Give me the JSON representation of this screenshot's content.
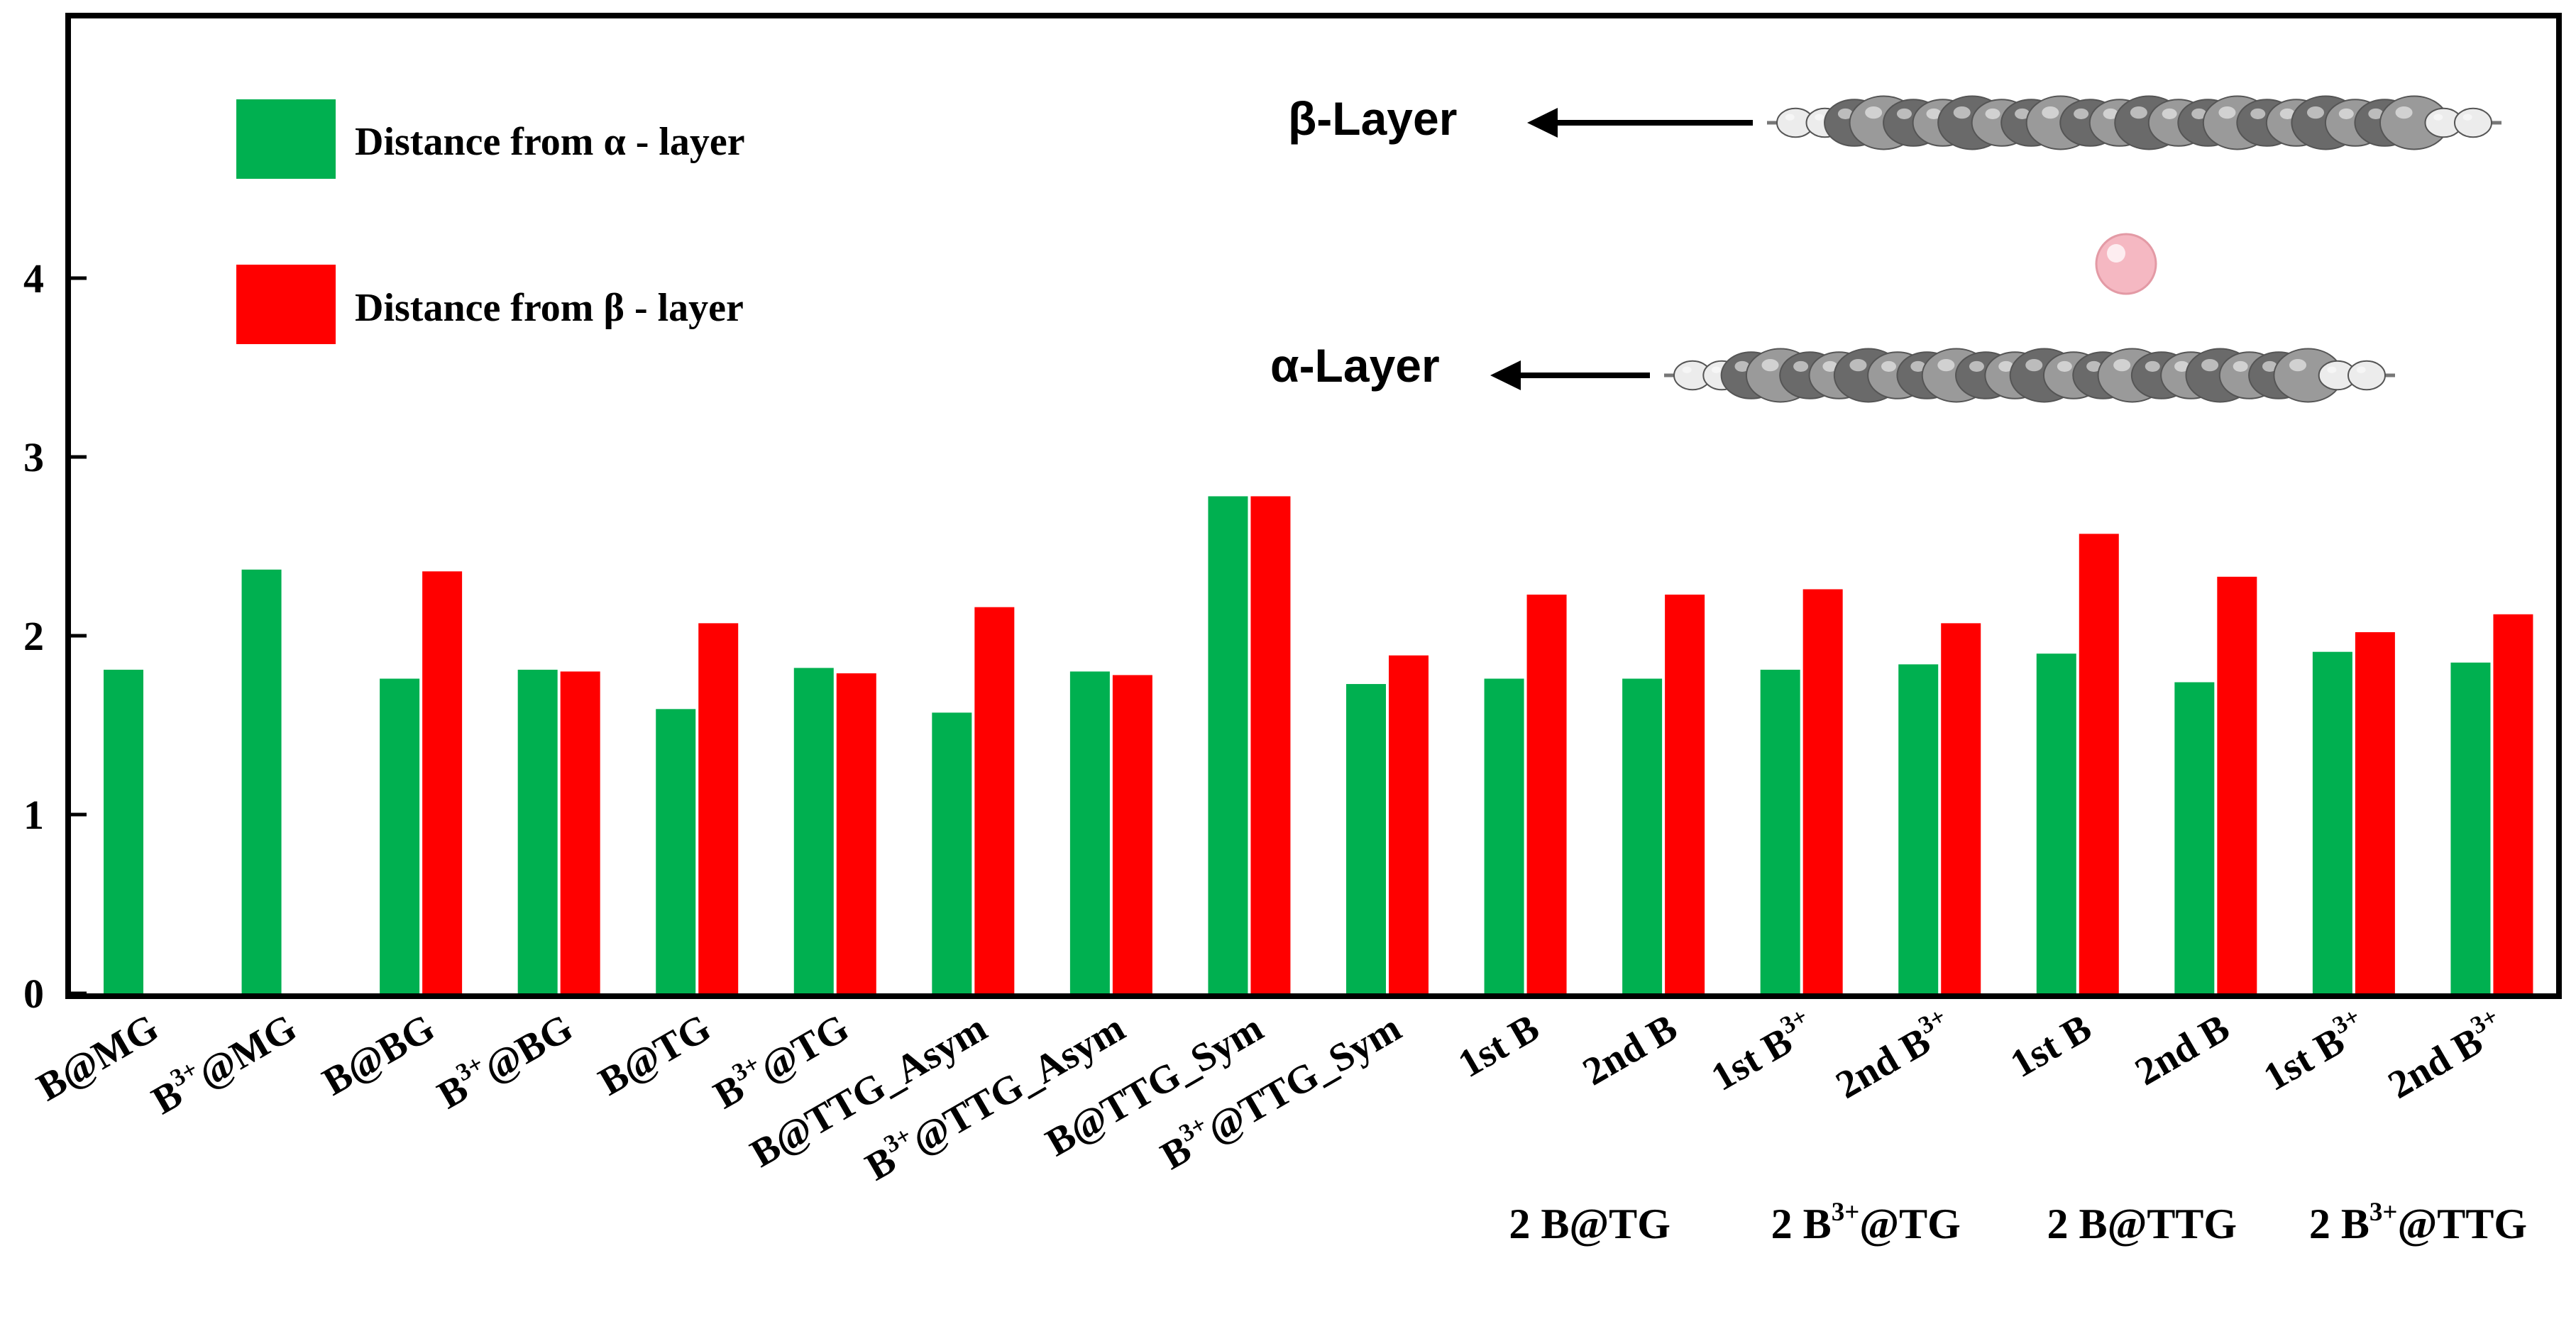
{
  "chart_data": {
    "type": "bar",
    "title": "",
    "xlabel": "",
    "ylabel": "",
    "ylim": [
      0,
      5
    ],
    "yticks": [
      "0",
      "1",
      "2",
      "3",
      "4"
    ],
    "grid": false,
    "legend_position": "top-left",
    "categories": [
      {
        "main": "B@MG"
      },
      {
        "main": "B",
        "sup": "3+",
        "rest": "@MG"
      },
      {
        "main": "B@BG"
      },
      {
        "main": "B",
        "sup": "3+",
        "rest": "@BG"
      },
      {
        "main": "B@TG"
      },
      {
        "main": "B",
        "sup": "3+",
        "rest": "@TG"
      },
      {
        "main": "B@TTG_Asym"
      },
      {
        "main": "B",
        "sup": "3+",
        "rest": "@TTG_Asym"
      },
      {
        "main": "B@TTG_Sym"
      },
      {
        "main": "B",
        "sup": "3+",
        "rest": "@TTG_Sym"
      },
      {
        "main": "1st B"
      },
      {
        "main": "2nd B"
      },
      {
        "main": "1st  B",
        "sup": "3+"
      },
      {
        "main": "2nd B",
        "sup": "3+"
      },
      {
        "main": "1st B"
      },
      {
        "main": "2nd B"
      },
      {
        "main": "1st B",
        "sup": "3+"
      },
      {
        "main": "2nd B",
        "sup": "3+"
      }
    ],
    "series": [
      {
        "name": "Distance from α - layer",
        "color": "#00b050",
        "values": [
          1.81,
          2.37,
          1.76,
          1.81,
          1.59,
          1.82,
          1.57,
          1.8,
          2.78,
          1.73,
          1.76,
          1.76,
          1.81,
          1.84,
          1.9,
          1.74,
          1.91,
          1.85
        ]
      },
      {
        "name": "Distance from β - layer",
        "color": "#ff0000",
        "values": [
          null,
          null,
          2.36,
          1.8,
          2.07,
          1.79,
          2.16,
          1.78,
          2.78,
          1.89,
          2.23,
          2.23,
          2.26,
          2.07,
          2.57,
          2.33,
          2.02,
          2.12
        ]
      }
    ],
    "groups": [
      {
        "main": "2 B@TG",
        "sup": "",
        "rest": "",
        "first": 10,
        "last": 11
      },
      {
        "main": "2 B",
        "sup": "3+",
        "rest": "@TG",
        "first": 12,
        "last": 13
      },
      {
        "main": "2 B@TTG",
        "sup": "",
        "rest": "",
        "first": 14,
        "last": 15
      },
      {
        "main": "2 B",
        "sup": "3+",
        "rest": "@TTG",
        "first": 16,
        "last": 17
      }
    ],
    "annotations": {
      "beta_layer": "β-Layer",
      "alpha_layer": "α-Layer"
    }
  }
}
